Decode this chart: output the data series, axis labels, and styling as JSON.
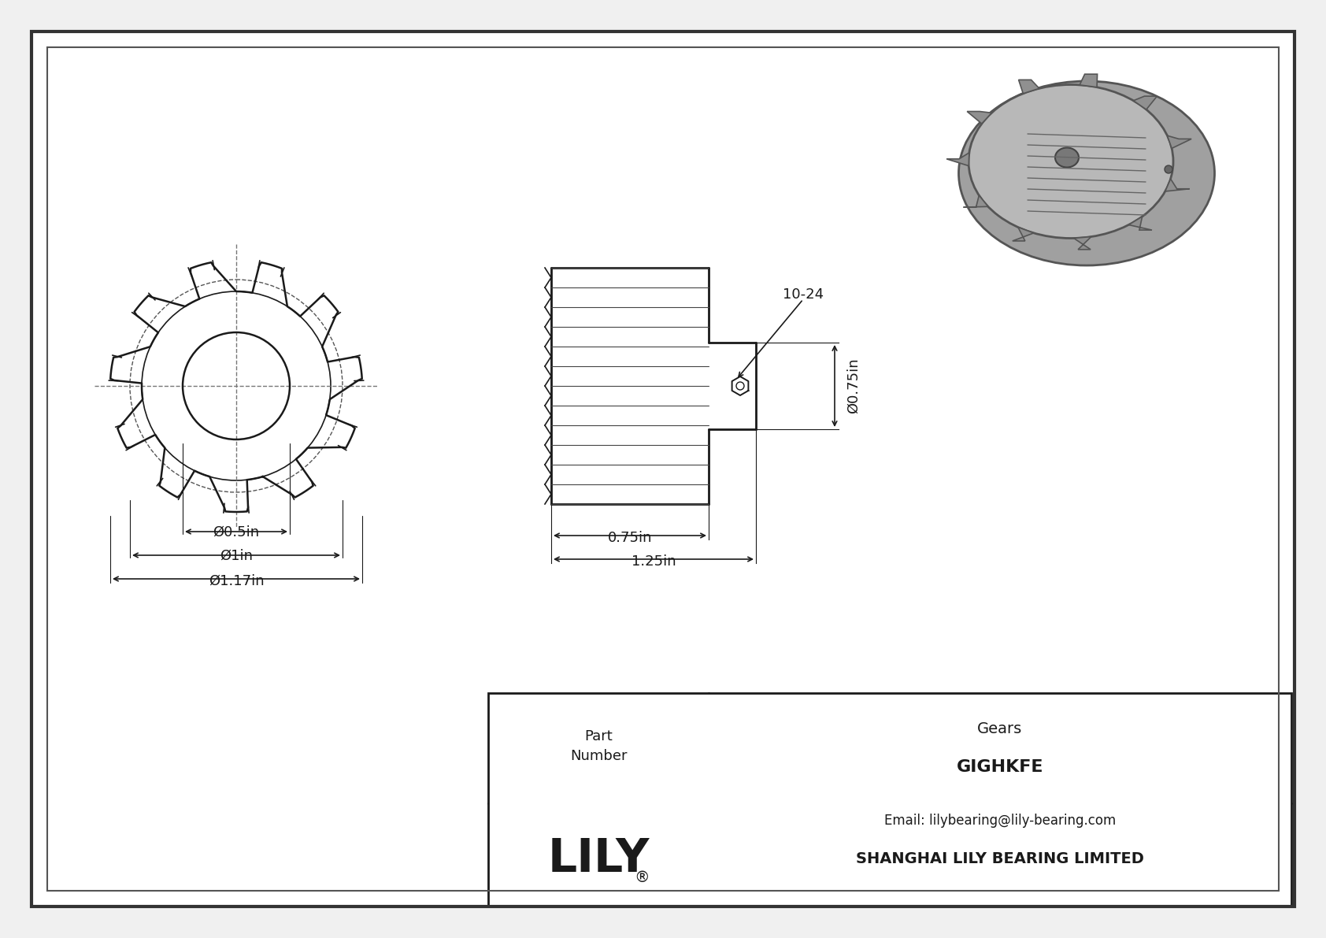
{
  "bg_color": "#f0f0f0",
  "drawing_bg": "#ffffff",
  "line_color": "#1a1a1a",
  "dim_color": "#1a1a1a",
  "dashed_color": "#555555",
  "title_block": {
    "company": "SHANGHAI LILY BEARING LIMITED",
    "email": "Email: lilybearing@lily-bearing.com",
    "lily_text": "LILY",
    "part_label": "Part\nNumber",
    "part_number": "GIGHKFE",
    "part_type": "Gears"
  },
  "dims": {
    "od_diameter": "Ø1.17in",
    "pitch_diameter": "Ø1in",
    "bore_diameter": "Ø0.5in",
    "length_total": "1.25in",
    "length_gear": "0.75in",
    "shaft_diameter": "Ø0.75in",
    "screw": "10-24"
  }
}
